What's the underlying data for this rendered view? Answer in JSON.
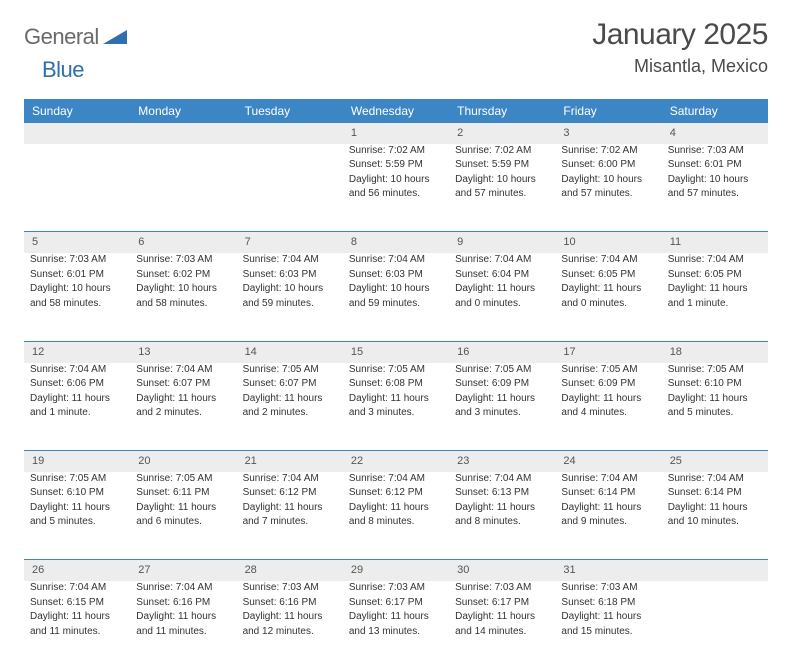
{
  "logo": {
    "word1": "General",
    "word2": "Blue"
  },
  "title": "January 2025",
  "location": "Misantla, Mexico",
  "colors": {
    "header_bg": "#3d86c6",
    "header_text": "#ffffff",
    "daynum_bg": "#ededed",
    "cell_border": "#3d86c6",
    "body_text": "#333333",
    "logo_gray": "#6a6a6a",
    "logo_blue": "#2f6fb0"
  },
  "weekdays": [
    "Sunday",
    "Monday",
    "Tuesday",
    "Wednesday",
    "Thursday",
    "Friday",
    "Saturday"
  ],
  "weeks": [
    {
      "nums": [
        "",
        "",
        "",
        "1",
        "2",
        "3",
        "4"
      ],
      "cells": [
        null,
        null,
        null,
        {
          "sunrise": "Sunrise: 7:02 AM",
          "sunset": "Sunset: 5:59 PM",
          "day1": "Daylight: 10 hours",
          "day2": "and 56 minutes."
        },
        {
          "sunrise": "Sunrise: 7:02 AM",
          "sunset": "Sunset: 5:59 PM",
          "day1": "Daylight: 10 hours",
          "day2": "and 57 minutes."
        },
        {
          "sunrise": "Sunrise: 7:02 AM",
          "sunset": "Sunset: 6:00 PM",
          "day1": "Daylight: 10 hours",
          "day2": "and 57 minutes."
        },
        {
          "sunrise": "Sunrise: 7:03 AM",
          "sunset": "Sunset: 6:01 PM",
          "day1": "Daylight: 10 hours",
          "day2": "and 57 minutes."
        }
      ]
    },
    {
      "nums": [
        "5",
        "6",
        "7",
        "8",
        "9",
        "10",
        "11"
      ],
      "cells": [
        {
          "sunrise": "Sunrise: 7:03 AM",
          "sunset": "Sunset: 6:01 PM",
          "day1": "Daylight: 10 hours",
          "day2": "and 58 minutes."
        },
        {
          "sunrise": "Sunrise: 7:03 AM",
          "sunset": "Sunset: 6:02 PM",
          "day1": "Daylight: 10 hours",
          "day2": "and 58 minutes."
        },
        {
          "sunrise": "Sunrise: 7:04 AM",
          "sunset": "Sunset: 6:03 PM",
          "day1": "Daylight: 10 hours",
          "day2": "and 59 minutes."
        },
        {
          "sunrise": "Sunrise: 7:04 AM",
          "sunset": "Sunset: 6:03 PM",
          "day1": "Daylight: 10 hours",
          "day2": "and 59 minutes."
        },
        {
          "sunrise": "Sunrise: 7:04 AM",
          "sunset": "Sunset: 6:04 PM",
          "day1": "Daylight: 11 hours",
          "day2": "and 0 minutes."
        },
        {
          "sunrise": "Sunrise: 7:04 AM",
          "sunset": "Sunset: 6:05 PM",
          "day1": "Daylight: 11 hours",
          "day2": "and 0 minutes."
        },
        {
          "sunrise": "Sunrise: 7:04 AM",
          "sunset": "Sunset: 6:05 PM",
          "day1": "Daylight: 11 hours",
          "day2": "and 1 minute."
        }
      ]
    },
    {
      "nums": [
        "12",
        "13",
        "14",
        "15",
        "16",
        "17",
        "18"
      ],
      "cells": [
        {
          "sunrise": "Sunrise: 7:04 AM",
          "sunset": "Sunset: 6:06 PM",
          "day1": "Daylight: 11 hours",
          "day2": "and 1 minute."
        },
        {
          "sunrise": "Sunrise: 7:04 AM",
          "sunset": "Sunset: 6:07 PM",
          "day1": "Daylight: 11 hours",
          "day2": "and 2 minutes."
        },
        {
          "sunrise": "Sunrise: 7:05 AM",
          "sunset": "Sunset: 6:07 PM",
          "day1": "Daylight: 11 hours",
          "day2": "and 2 minutes."
        },
        {
          "sunrise": "Sunrise: 7:05 AM",
          "sunset": "Sunset: 6:08 PM",
          "day1": "Daylight: 11 hours",
          "day2": "and 3 minutes."
        },
        {
          "sunrise": "Sunrise: 7:05 AM",
          "sunset": "Sunset: 6:09 PM",
          "day1": "Daylight: 11 hours",
          "day2": "and 3 minutes."
        },
        {
          "sunrise": "Sunrise: 7:05 AM",
          "sunset": "Sunset: 6:09 PM",
          "day1": "Daylight: 11 hours",
          "day2": "and 4 minutes."
        },
        {
          "sunrise": "Sunrise: 7:05 AM",
          "sunset": "Sunset: 6:10 PM",
          "day1": "Daylight: 11 hours",
          "day2": "and 5 minutes."
        }
      ]
    },
    {
      "nums": [
        "19",
        "20",
        "21",
        "22",
        "23",
        "24",
        "25"
      ],
      "cells": [
        {
          "sunrise": "Sunrise: 7:05 AM",
          "sunset": "Sunset: 6:10 PM",
          "day1": "Daylight: 11 hours",
          "day2": "and 5 minutes."
        },
        {
          "sunrise": "Sunrise: 7:05 AM",
          "sunset": "Sunset: 6:11 PM",
          "day1": "Daylight: 11 hours",
          "day2": "and 6 minutes."
        },
        {
          "sunrise": "Sunrise: 7:04 AM",
          "sunset": "Sunset: 6:12 PM",
          "day1": "Daylight: 11 hours",
          "day2": "and 7 minutes."
        },
        {
          "sunrise": "Sunrise: 7:04 AM",
          "sunset": "Sunset: 6:12 PM",
          "day1": "Daylight: 11 hours",
          "day2": "and 8 minutes."
        },
        {
          "sunrise": "Sunrise: 7:04 AM",
          "sunset": "Sunset: 6:13 PM",
          "day1": "Daylight: 11 hours",
          "day2": "and 8 minutes."
        },
        {
          "sunrise": "Sunrise: 7:04 AM",
          "sunset": "Sunset: 6:14 PM",
          "day1": "Daylight: 11 hours",
          "day2": "and 9 minutes."
        },
        {
          "sunrise": "Sunrise: 7:04 AM",
          "sunset": "Sunset: 6:14 PM",
          "day1": "Daylight: 11 hours",
          "day2": "and 10 minutes."
        }
      ]
    },
    {
      "nums": [
        "26",
        "27",
        "28",
        "29",
        "30",
        "31",
        ""
      ],
      "cells": [
        {
          "sunrise": "Sunrise: 7:04 AM",
          "sunset": "Sunset: 6:15 PM",
          "day1": "Daylight: 11 hours",
          "day2": "and 11 minutes."
        },
        {
          "sunrise": "Sunrise: 7:04 AM",
          "sunset": "Sunset: 6:16 PM",
          "day1": "Daylight: 11 hours",
          "day2": "and 11 minutes."
        },
        {
          "sunrise": "Sunrise: 7:03 AM",
          "sunset": "Sunset: 6:16 PM",
          "day1": "Daylight: 11 hours",
          "day2": "and 12 minutes."
        },
        {
          "sunrise": "Sunrise: 7:03 AM",
          "sunset": "Sunset: 6:17 PM",
          "day1": "Daylight: 11 hours",
          "day2": "and 13 minutes."
        },
        {
          "sunrise": "Sunrise: 7:03 AM",
          "sunset": "Sunset: 6:17 PM",
          "day1": "Daylight: 11 hours",
          "day2": "and 14 minutes."
        },
        {
          "sunrise": "Sunrise: 7:03 AM",
          "sunset": "Sunset: 6:18 PM",
          "day1": "Daylight: 11 hours",
          "day2": "and 15 minutes."
        },
        null
      ]
    }
  ]
}
